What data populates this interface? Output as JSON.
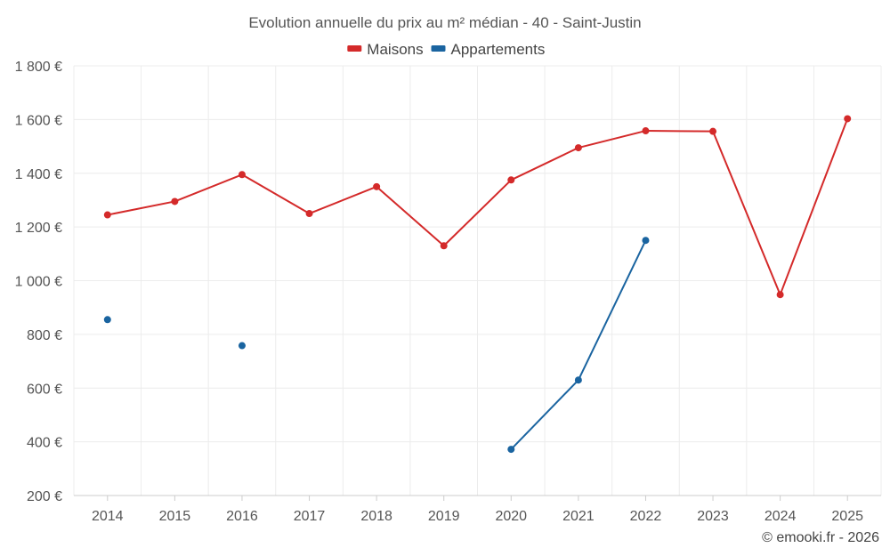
{
  "chart_data": {
    "type": "line",
    "title": "Evolution annuelle du prix au m² médian - 40 - Saint-Justin",
    "categories": [
      "2014",
      "2015",
      "2016",
      "2017",
      "2018",
      "2019",
      "2020",
      "2021",
      "2022",
      "2023",
      "2024",
      "2025"
    ],
    "ylim": [
      200,
      1800
    ],
    "yticks": [
      200,
      400,
      600,
      800,
      1000,
      1200,
      1400,
      1600,
      1800
    ],
    "ytick_labels": [
      "200 €",
      "400 €",
      "600 €",
      "800 €",
      "1 000 €",
      "1 200 €",
      "1 400 €",
      "1 600 €",
      "1 800 €"
    ],
    "grid": true,
    "legend_position": "top-center",
    "series": [
      {
        "name": "Maisons",
        "color": "#d42a2a",
        "values": [
          1245,
          1295,
          1395,
          1250,
          1350,
          1130,
          1375,
          1495,
          1558,
          1556,
          948,
          1603
        ]
      },
      {
        "name": "Appartements",
        "color": "#1a64a0",
        "values": [
          855,
          null,
          758,
          null,
          null,
          null,
          372,
          630,
          1150,
          null,
          null,
          null
        ]
      }
    ]
  },
  "credit": "© emooki.fr - 2026"
}
